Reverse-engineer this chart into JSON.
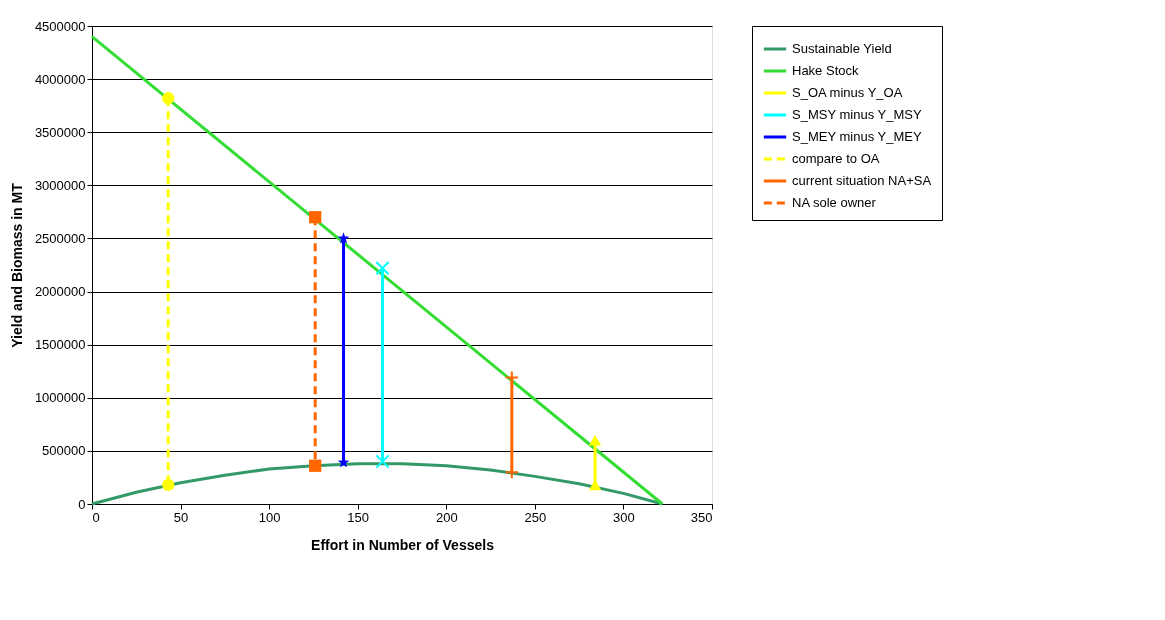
{
  "chart_data": {
    "type": "line",
    "xlabel": "Effort in Number of Vessels",
    "ylabel": "Yield and Biomass in MT",
    "xlim": [
      0,
      350
    ],
    "xticks": [
      0,
      50,
      100,
      150,
      200,
      250,
      300,
      350
    ],
    "ylim": [
      0,
      4500000
    ],
    "yticks": [
      0,
      500000,
      1000000,
      1500000,
      2000000,
      2500000,
      3000000,
      3500000,
      4000000,
      4500000
    ],
    "grid": "y",
    "legend": "right",
    "series": [
      {
        "name": "Sustainable Yield",
        "color": "#339966",
        "marker": "none",
        "line_style": "solid",
        "x": [
          0,
          25,
          50,
          75,
          100,
          125,
          150,
          175,
          200,
          225,
          250,
          275,
          300,
          322
        ],
        "values": [
          0,
          110000,
          200000,
          270000,
          330000,
          360000,
          380000,
          380000,
          360000,
          320000,
          260000,
          190000,
          100000,
          0
        ]
      },
      {
        "name": "Hake Stock",
        "color": "#33dd33",
        "marker": "none",
        "line_style": "solid",
        "x": [
          0,
          322
        ],
        "values": [
          4400000,
          0
        ]
      },
      {
        "name": "S_OA minus Y_OA",
        "color": "#ffff00",
        "marker": "triangle",
        "line_style": "solid",
        "x": [
          284,
          284
        ],
        "values": [
          600000,
          180000
        ]
      },
      {
        "name": "S_MSY minus Y_MSY",
        "color": "#00ffff",
        "marker": "cross",
        "line_style": "solid",
        "x": [
          164,
          164
        ],
        "values": [
          2220000,
          400000
        ]
      },
      {
        "name": "S_MEY minus Y_MEY",
        "color": "#0000ff",
        "marker": "star",
        "line_style": "solid",
        "x": [
          142,
          142
        ],
        "values": [
          2500000,
          390000
        ]
      },
      {
        "name": "compare to OA",
        "color": "#ffff00",
        "marker": "circle",
        "line_style": "dashed",
        "x": [
          43,
          43
        ],
        "values": [
          3820000,
          180000
        ]
      },
      {
        "name": "current situation NA+SA",
        "color": "#ff6600",
        "marker": "plus",
        "line_style": "solid",
        "x": [
          237,
          237
        ],
        "values": [
          1190000,
          300000
        ]
      },
      {
        "name": "NA sole owner",
        "color": "#ff6600",
        "marker": "square",
        "line_style": "dashed",
        "x": [
          126,
          126
        ],
        "values": [
          2700000,
          360000
        ]
      }
    ]
  }
}
